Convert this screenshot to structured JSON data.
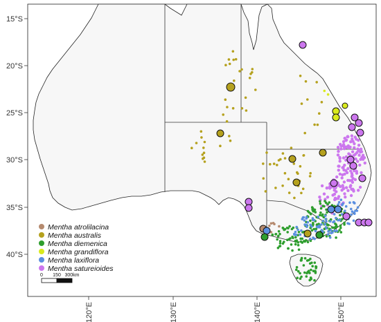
{
  "map": {
    "lat_ticks": [
      "15°S",
      "20°S",
      "25°S",
      "30°S",
      "35°S",
      "40°S"
    ],
    "lon_ticks": [
      "120°E",
      "130°E",
      "140°E",
      "150°E"
    ],
    "land_color": "#f7f7f7",
    "ocean_color": "#ffffff",
    "border_color": "#222222"
  },
  "legend": {
    "items": [
      {
        "label": "Mentha atrolilacina",
        "color": "#b58a6e"
      },
      {
        "label": "Mentha australis",
        "color": "#b5a11e"
      },
      {
        "label": "Mentha diemenica",
        "color": "#2e9e2e"
      },
      {
        "label": "Mentha grandiflora",
        "color": "#d9ea1e"
      },
      {
        "label": "Mentha laxiflora",
        "color": "#5b8fe0"
      },
      {
        "label": "Mentha satureioides",
        "color": "#cc77ee"
      }
    ]
  },
  "scale_bar": {
    "labels": [
      "0",
      "150",
      "300km"
    ]
  }
}
